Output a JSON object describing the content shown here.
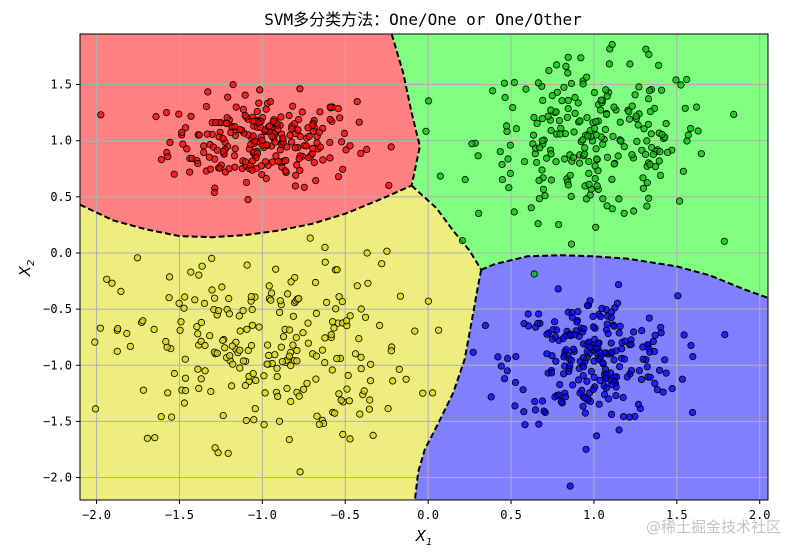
{
  "chart_data": {
    "type": "scatter",
    "title": "SVM多分类方法：One/One or One/Other",
    "xlabel": "X",
    "xlabel_sub": "1",
    "ylabel": "X",
    "ylabel_sub": "2",
    "xlim": [
      -2.1,
      2.05
    ],
    "ylim": [
      -2.2,
      1.95
    ],
    "xticks": [
      -2.0,
      -1.5,
      -1.0,
      -0.5,
      0.0,
      0.5,
      1.0,
      1.5,
      2.0
    ],
    "yticks": [
      -2.0,
      -1.5,
      -1.0,
      -0.5,
      0.0,
      0.5,
      1.0,
      1.5
    ],
    "xtick_labels": [
      "−2.0",
      "−1.5",
      "−1.0",
      "−0.5",
      "0.0",
      "0.5",
      "1.0",
      "1.5",
      "2.0"
    ],
    "ytick_labels": [
      "−2.0",
      "−1.5",
      "−1.0",
      "−0.5",
      "0.0",
      "0.5",
      "1.0",
      "1.5"
    ],
    "grid": true,
    "region_colors": {
      "red": "#ff8080",
      "green": "#80ff80",
      "blue": "#8080ff",
      "yellow": "#eeee7f"
    },
    "boundary_style": "dashed black",
    "regions": [
      {
        "class": "red",
        "polygon": [
          [
            -2.1,
            1.95
          ],
          [
            -0.22,
            1.95
          ],
          [
            -0.15,
            1.6
          ],
          [
            -0.1,
            1.25
          ],
          [
            -0.05,
            0.95
          ],
          [
            -0.1,
            0.6
          ],
          [
            -0.3,
            0.47
          ],
          [
            -0.5,
            0.35
          ],
          [
            -0.7,
            0.26
          ],
          [
            -0.9,
            0.2
          ],
          [
            -1.1,
            0.16
          ],
          [
            -1.3,
            0.14
          ],
          [
            -1.5,
            0.15
          ],
          [
            -1.7,
            0.21
          ],
          [
            -1.9,
            0.29
          ],
          [
            -2.1,
            0.43
          ]
        ]
      },
      {
        "class": "green",
        "polygon": [
          [
            -0.22,
            1.95
          ],
          [
            2.05,
            1.95
          ],
          [
            2.05,
            -0.4
          ],
          [
            1.9,
            -0.32
          ],
          [
            1.7,
            -0.2
          ],
          [
            1.5,
            -0.12
          ],
          [
            1.2,
            -0.05
          ],
          [
            1.0,
            -0.03
          ],
          [
            0.8,
            -0.02
          ],
          [
            0.6,
            -0.03
          ],
          [
            0.4,
            -0.1
          ],
          [
            0.32,
            -0.15
          ],
          [
            0.25,
            0.02
          ],
          [
            0.15,
            0.2
          ],
          [
            0.05,
            0.4
          ],
          [
            -0.05,
            0.55
          ],
          [
            -0.1,
            0.6
          ],
          [
            -0.05,
            0.95
          ],
          [
            -0.1,
            1.25
          ],
          [
            -0.15,
            1.6
          ]
        ]
      },
      {
        "class": "blue",
        "polygon": [
          [
            0.32,
            -0.15
          ],
          [
            0.4,
            -0.1
          ],
          [
            0.6,
            -0.03
          ],
          [
            0.8,
            -0.02
          ],
          [
            1.0,
            -0.03
          ],
          [
            1.2,
            -0.05
          ],
          [
            1.5,
            -0.12
          ],
          [
            1.7,
            -0.2
          ],
          [
            1.9,
            -0.32
          ],
          [
            2.05,
            -0.4
          ],
          [
            2.05,
            -2.2
          ],
          [
            -0.08,
            -2.2
          ],
          [
            -0.06,
            -1.95
          ],
          [
            -0.02,
            -1.75
          ],
          [
            0.05,
            -1.55
          ],
          [
            0.15,
            -1.25
          ],
          [
            0.22,
            -0.95
          ],
          [
            0.27,
            -0.55
          ],
          [
            0.3,
            -0.3
          ]
        ]
      },
      {
        "class": "yellow",
        "polygon": [
          [
            -2.1,
            0.43
          ],
          [
            -1.9,
            0.29
          ],
          [
            -1.7,
            0.21
          ],
          [
            -1.5,
            0.15
          ],
          [
            -1.3,
            0.14
          ],
          [
            -1.1,
            0.16
          ],
          [
            -0.9,
            0.2
          ],
          [
            -0.7,
            0.26
          ],
          [
            -0.5,
            0.35
          ],
          [
            -0.3,
            0.47
          ],
          [
            -0.1,
            0.6
          ],
          [
            0.05,
            0.4
          ],
          [
            0.15,
            0.2
          ],
          [
            0.25,
            0.02
          ],
          [
            0.32,
            -0.15
          ],
          [
            0.3,
            -0.3
          ],
          [
            0.27,
            -0.55
          ],
          [
            0.22,
            -0.95
          ],
          [
            0.15,
            -1.25
          ],
          [
            0.05,
            -1.55
          ],
          [
            -0.02,
            -1.75
          ],
          [
            -0.06,
            -1.95
          ],
          [
            -0.08,
            -2.2
          ],
          [
            -2.1,
            -2.2
          ]
        ]
      }
    ],
    "boundaries": [
      [
        [
          -2.1,
          0.43
        ],
        [
          -1.9,
          0.29
        ],
        [
          -1.7,
          0.21
        ],
        [
          -1.5,
          0.15
        ],
        [
          -1.3,
          0.14
        ],
        [
          -1.1,
          0.16
        ],
        [
          -0.9,
          0.2
        ],
        [
          -0.7,
          0.26
        ],
        [
          -0.5,
          0.35
        ],
        [
          -0.3,
          0.47
        ],
        [
          -0.1,
          0.6
        ]
      ],
      [
        [
          -0.22,
          1.95
        ],
        [
          -0.15,
          1.6
        ],
        [
          -0.1,
          1.25
        ],
        [
          -0.05,
          0.95
        ],
        [
          -0.1,
          0.6
        ]
      ],
      [
        [
          -0.1,
          0.6
        ],
        [
          0.05,
          0.4
        ],
        [
          0.15,
          0.2
        ],
        [
          0.25,
          0.02
        ],
        [
          0.32,
          -0.15
        ]
      ],
      [
        [
          0.32,
          -0.15
        ],
        [
          0.4,
          -0.1
        ],
        [
          0.6,
          -0.03
        ],
        [
          0.8,
          -0.02
        ],
        [
          1.0,
          -0.03
        ],
        [
          1.2,
          -0.05
        ],
        [
          1.5,
          -0.12
        ],
        [
          1.7,
          -0.2
        ],
        [
          1.9,
          -0.32
        ],
        [
          2.05,
          -0.4
        ]
      ],
      [
        [
          0.32,
          -0.15
        ],
        [
          0.3,
          -0.3
        ],
        [
          0.27,
          -0.55
        ],
        [
          0.22,
          -0.95
        ],
        [
          0.15,
          -1.25
        ],
        [
          0.05,
          -1.55
        ],
        [
          -0.02,
          -1.75
        ],
        [
          -0.06,
          -1.95
        ],
        [
          -0.08,
          -2.2
        ]
      ]
    ],
    "series": [
      {
        "class": "red",
        "color": "#ff0000",
        "center": [
          -1.0,
          1.0
        ],
        "spread": [
          0.28,
          0.2
        ],
        "count": 240
      },
      {
        "class": "green",
        "color": "#00c000",
        "center": [
          1.0,
          1.0
        ],
        "spread": [
          0.35,
          0.35
        ],
        "count": 240
      },
      {
        "class": "blue",
        "color": "#0000ff",
        "center": [
          1.0,
          -0.95
        ],
        "spread": [
          0.25,
          0.28
        ],
        "count": 240
      },
      {
        "class": "yellow",
        "color": "#d8d800",
        "center": [
          -1.0,
          -0.85
        ],
        "spread": [
          0.45,
          0.42
        ],
        "count": 240
      }
    ]
  },
  "watermark": "@稀土掘金技术社区"
}
